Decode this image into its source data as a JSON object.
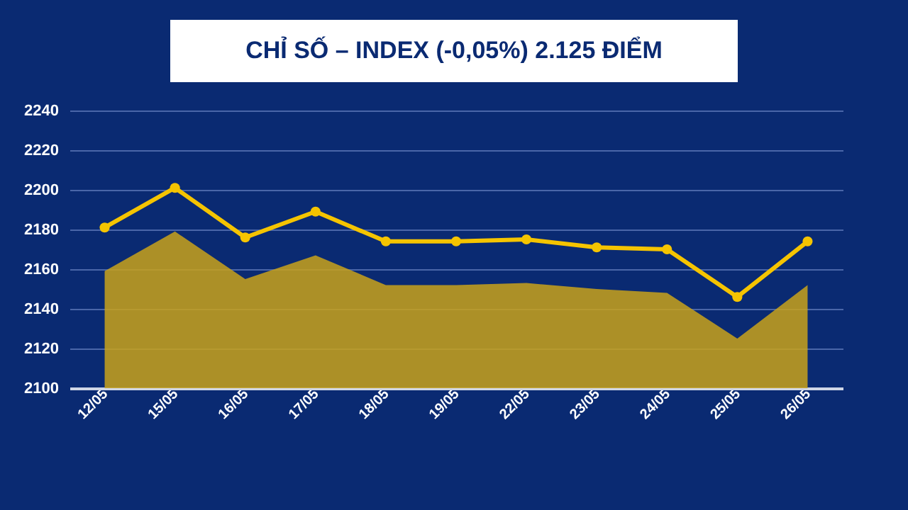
{
  "chart_data": {
    "type": "line",
    "title": "CHỈ SỐ – INDEX (-0,05%) 2.125 ĐIỂM",
    "categories": [
      "12/05",
      "15/05",
      "16/05",
      "17/05",
      "18/05",
      "19/05",
      "22/05",
      "23/05",
      "24/05",
      "25/05",
      "26/05"
    ],
    "series": [
      {
        "color": "#f5c400",
        "marker": "circle",
        "values": [
          2181,
          2201,
          2176,
          2189,
          2174,
          2174,
          2175,
          2171,
          2170,
          2146,
          2174
        ]
      },
      {
        "type": "area",
        "color": "#c9a21a",
        "values": [
          2159,
          2179,
          2155,
          2167,
          2152,
          2152,
          2153,
          2150,
          2148,
          2125,
          2152
        ]
      }
    ],
    "ylim": [
      2100,
      2240
    ],
    "yticks": [
      2100,
      2120,
      2140,
      2160,
      2180,
      2200,
      2220,
      2240
    ],
    "grid": "y",
    "line_style": "solid"
  }
}
